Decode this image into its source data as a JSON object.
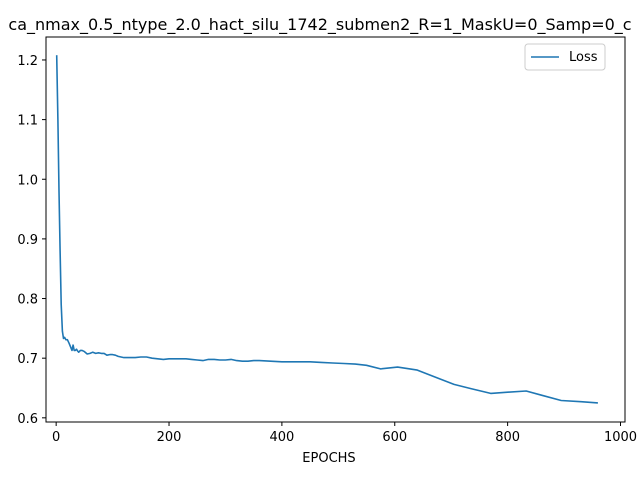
{
  "chart_data": {
    "type": "line",
    "title": "ca_nmax_0.5_ntype_2.0_hact_silu_1742_submen2_R=1_MaskU=0_Samp=0_c",
    "xlabel": "EPOCHS",
    "ylabel": "",
    "xlim": [
      -18,
      1008
    ],
    "ylim": [
      0.593,
      1.2385
    ],
    "xticks": [
      0,
      200,
      400,
      600,
      800,
      1000
    ],
    "yticks": [
      0.6,
      0.7,
      0.8,
      0.9,
      1.0,
      1.1,
      1.2
    ],
    "xtick_labels": [
      "0",
      "200",
      "400",
      "600",
      "800",
      "1000"
    ],
    "ytick_labels": [
      "0.6",
      "0.7",
      "0.8",
      "0.9",
      "1.0",
      "1.1",
      "1.2"
    ],
    "grid": false,
    "legend_position": "top-right",
    "series": [
      {
        "name": "Loss",
        "color": "#1f77b4",
        "x": [
          1,
          3,
          5,
          7,
          9,
          11,
          13,
          15,
          17,
          20,
          23,
          26,
          28,
          30,
          32,
          34,
          36,
          38,
          40,
          43,
          46,
          50,
          55,
          60,
          65,
          70,
          75,
          80,
          85,
          90,
          95,
          100,
          105,
          110,
          120,
          130,
          140,
          150,
          160,
          170,
          180,
          190,
          200,
          210,
          220,
          230,
          240,
          250,
          260,
          270,
          280,
          290,
          300,
          310,
          320,
          330,
          340,
          350,
          360,
          380,
          400,
          420,
          450,
          470,
          490,
          510,
          530,
          550,
          575,
          605,
          640,
          670,
          705,
          735,
          770,
          800,
          833,
          860,
          895,
          930,
          960
        ],
        "y": [
          1.208,
          1.1,
          0.98,
          0.88,
          0.79,
          0.745,
          0.733,
          0.735,
          0.731,
          0.731,
          0.725,
          0.718,
          0.713,
          0.722,
          0.713,
          0.713,
          0.715,
          0.712,
          0.71,
          0.713,
          0.713,
          0.711,
          0.707,
          0.708,
          0.71,
          0.708,
          0.709,
          0.708,
          0.708,
          0.705,
          0.706,
          0.706,
          0.705,
          0.703,
          0.701,
          0.701,
          0.701,
          0.702,
          0.702,
          0.7,
          0.699,
          0.698,
          0.699,
          0.699,
          0.699,
          0.699,
          0.698,
          0.697,
          0.696,
          0.698,
          0.698,
          0.697,
          0.697,
          0.698,
          0.696,
          0.695,
          0.695,
          0.696,
          0.696,
          0.695,
          0.694,
          0.694,
          0.694,
          0.693,
          0.692,
          0.691,
          0.69,
          0.688,
          0.682,
          0.685,
          0.68,
          0.669,
          0.656,
          0.649,
          0.641,
          0.643,
          0.645,
          0.638,
          0.629,
          0.627,
          0.625
        ]
      }
    ]
  }
}
